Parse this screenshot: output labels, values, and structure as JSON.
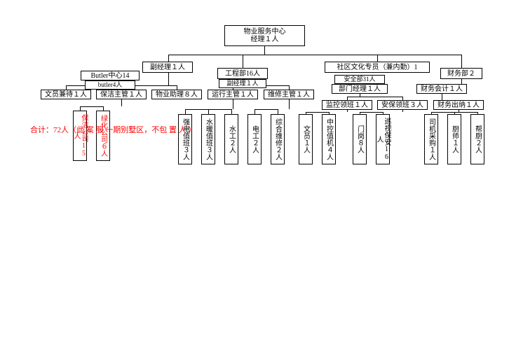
{
  "diagram": {
    "type": "org-chart",
    "background_color": "#ffffff",
    "border_color": "#000000",
    "text_color": "#000000",
    "note_color": "#ff0000",
    "font_size": 10,
    "note_font_size": 11,
    "root": {
      "title": "物业服务中心",
      "subtitle": "经理１人"
    },
    "level2": {
      "vice_mgr": "副经理１人",
      "eng_dept": "工程部16人",
      "community": "社区文化专员（兼内勤）1",
      "finance": "财务部２"
    },
    "level3": {
      "butler_center": "Butler中心14",
      "butler4": "butler4人",
      "eng_vice": "副经理１人",
      "sec_dept": "安全部31人",
      "dept_mgr": "部门经理１人",
      "fin_acc": "财务会计１人"
    },
    "level4": {
      "clerk_recv": "文员兼待１人",
      "clean_sup": "保洁主管１人",
      "prop_asst": "物业助理８人",
      "ops_sup": "运行主管１人",
      "maint_sup": "维修主管１人",
      "mon_lead": "监控领班１人",
      "sec_lead": "安保领班３人",
      "fin_cash": "财务出纳１人"
    },
    "leaves": {
      "clean_co": {
        "label": "保洁公司15人",
        "color": "#ff0000"
      },
      "green_co": {
        "label": "绿化公司６人",
        "color": "#ff0000"
      },
      "elec_duty": "强电值班３人",
      "hvac_duty": "水暖值班３人",
      "plumber": "水工２人",
      "electrician": "电工２人",
      "gen_maint": "综合维修２人",
      "clerk1": "文员１人",
      "cctv_duty": "中控值机４人",
      "gate": "门岗８人",
      "patrol": "巡视保安16人",
      "driver_buy": "司机采购１人",
      "chef": "厨师１人",
      "cook_help": "帮厨２人"
    },
    "note": "合计：72人（此 案 服 一期别墅区，不包 置 人 ）"
  }
}
